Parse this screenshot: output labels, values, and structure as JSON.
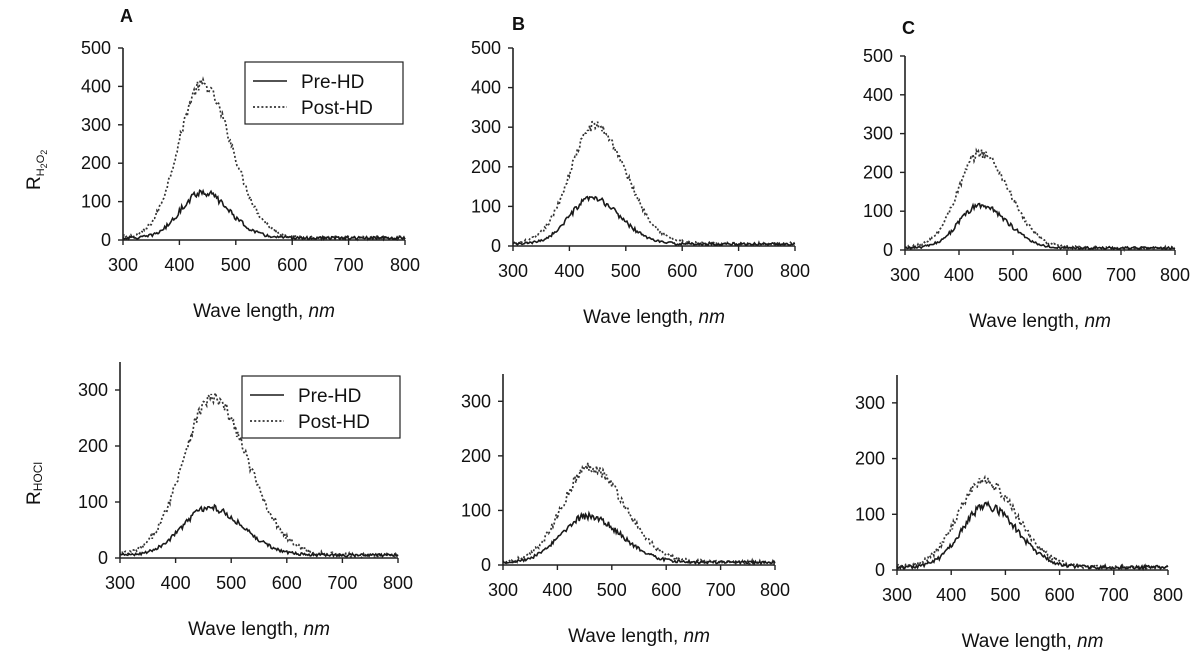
{
  "figure": {
    "panel_letters": [
      "A",
      "B",
      "C"
    ],
    "row_labels": [
      {
        "text": "RH2O2",
        "main": "R",
        "sub1": "H",
        "sub1b": "2",
        "mid": "O",
        "sub2": "2"
      },
      {
        "text": "RHOCl",
        "main": "R",
        "sub": "HOCl"
      }
    ],
    "xlabel_text": "Wave length, ",
    "xlabel_unit": "nm",
    "legend": {
      "pre": "Pre-HD",
      "post": "Post-HD"
    }
  },
  "chart_data": [
    {
      "type": "line",
      "panel": "A",
      "row": "H2O2",
      "xlim": [
        300,
        800
      ],
      "ylim": [
        0,
        500
      ],
      "xticks": [
        300,
        400,
        500,
        600,
        700,
        800
      ],
      "yticks": [
        0,
        100,
        200,
        300,
        400,
        500
      ],
      "xlabel": "Wave length, nm",
      "ylabel": "RH2O2",
      "legend": "top-right",
      "series": [
        {
          "name": "Pre-HD",
          "style": "solid",
          "peak_x": 440,
          "peak_y": 120,
          "width": 38,
          "jitter": 10
        },
        {
          "name": "Post-HD",
          "style": "dotted",
          "peak_x": 440,
          "peak_y": 400,
          "width": 42,
          "jitter": 15
        }
      ]
    },
    {
      "type": "line",
      "panel": "B",
      "row": "H2O2",
      "xlim": [
        300,
        800
      ],
      "ylim": [
        0,
        500
      ],
      "xticks": [
        300,
        400,
        500,
        600,
        700,
        800
      ],
      "yticks": [
        0,
        100,
        200,
        300,
        400,
        500
      ],
      "xlabel": "Wave length, nm",
      "ylabel": "",
      "series": [
        {
          "name": "Pre-HD",
          "style": "solid",
          "peak_x": 440,
          "peak_y": 115,
          "width": 40,
          "jitter": 8
        },
        {
          "name": "Post-HD",
          "style": "dotted",
          "peak_x": 445,
          "peak_y": 300,
          "width": 44,
          "jitter": 12
        }
      ]
    },
    {
      "type": "line",
      "panel": "C",
      "row": "H2O2",
      "xlim": [
        300,
        800
      ],
      "ylim": [
        0,
        500
      ],
      "xticks": [
        300,
        400,
        500,
        600,
        700,
        800
      ],
      "yticks": [
        0,
        100,
        200,
        300,
        400,
        500
      ],
      "xlabel": "Wave length, nm",
      "ylabel": "",
      "series": [
        {
          "name": "Pre-HD",
          "style": "solid",
          "peak_x": 440,
          "peak_y": 110,
          "width": 40,
          "jitter": 8
        },
        {
          "name": "Post-HD",
          "style": "dotted",
          "peak_x": 440,
          "peak_y": 245,
          "width": 42,
          "jitter": 12
        }
      ]
    },
    {
      "type": "line",
      "panel": "A",
      "row": "HOCl",
      "xlim": [
        300,
        800
      ],
      "ylim": [
        0,
        350
      ],
      "xticks": [
        300,
        400,
        500,
        600,
        700,
        800
      ],
      "yticks": [
        0,
        100,
        200,
        300
      ],
      "xlabel": "Wave length, nm",
      "ylabel": "RHOCl",
      "legend": "top-right",
      "series": [
        {
          "name": "Pre-HD",
          "style": "solid",
          "peak_x": 460,
          "peak_y": 85,
          "width": 48,
          "jitter": 6
        },
        {
          "name": "Post-HD",
          "style": "dotted",
          "peak_x": 465,
          "peak_y": 280,
          "width": 52,
          "jitter": 12
        }
      ]
    },
    {
      "type": "line",
      "panel": "B",
      "row": "HOCl",
      "xlim": [
        300,
        800
      ],
      "ylim": [
        0,
        350
      ],
      "xticks": [
        300,
        400,
        500,
        600,
        700,
        800
      ],
      "yticks": [
        0,
        100,
        200,
        300
      ],
      "xlabel": "Wave length, nm",
      "ylabel": "",
      "series": [
        {
          "name": "Pre-HD",
          "style": "solid",
          "peak_x": 455,
          "peak_y": 85,
          "width": 48,
          "jitter": 6
        },
        {
          "name": "Post-HD",
          "style": "dotted",
          "peak_x": 460,
          "peak_y": 175,
          "width": 50,
          "jitter": 10
        }
      ]
    },
    {
      "type": "line",
      "panel": "C",
      "row": "HOCl",
      "xlim": [
        300,
        800
      ],
      "ylim": [
        0,
        350
      ],
      "xticks": [
        300,
        400,
        500,
        600,
        700,
        800
      ],
      "yticks": [
        0,
        100,
        200,
        300
      ],
      "xlabel": "Wave length, nm",
      "ylabel": "",
      "series": [
        {
          "name": "Pre-HD",
          "style": "solid",
          "peak_x": 465,
          "peak_y": 110,
          "width": 45,
          "jitter": 8
        },
        {
          "name": "Post-HD",
          "style": "dotted",
          "peak_x": 460,
          "peak_y": 155,
          "width": 48,
          "jitter": 10
        }
      ]
    }
  ]
}
